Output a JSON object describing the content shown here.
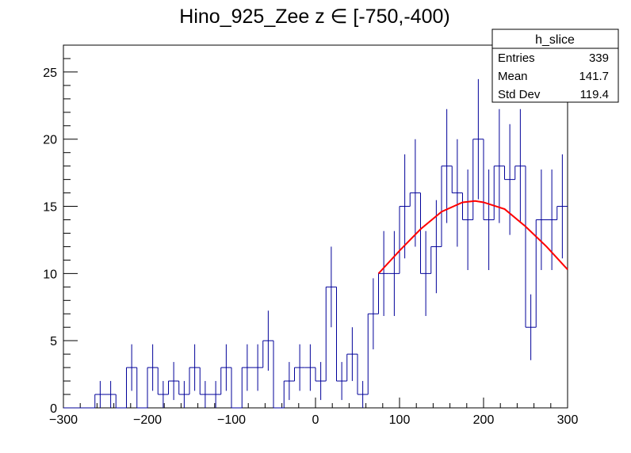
{
  "chart_data": {
    "type": "histogram",
    "title": "Hino_925_Zee z  ∈ [-750,-400)",
    "xlabel": "",
    "ylabel": "",
    "xlim": [
      -300,
      300
    ],
    "ylim": [
      0,
      27
    ],
    "x_ticks": [
      -300,
      -200,
      -100,
      0,
      100,
      200,
      300
    ],
    "y_ticks": [
      0,
      5,
      10,
      15,
      20,
      25
    ],
    "bin_width": 12.5,
    "bin_low_edges": [
      -300,
      -287.5,
      -275,
      -262.5,
      -250,
      -237.5,
      -225,
      -212.5,
      -200,
      -187.5,
      -175,
      -162.5,
      -150,
      -137.5,
      -125,
      -112.5,
      -100,
      -87.5,
      -75,
      -62.5,
      -50,
      -37.5,
      -25,
      -12.5,
      0,
      12.5,
      25,
      37.5,
      50,
      62.5,
      75,
      87.5,
      100,
      112.5,
      125,
      137.5,
      150,
      162.5,
      175,
      187.5,
      200,
      212.5,
      225,
      237.5,
      250,
      262.5,
      275,
      287.5
    ],
    "bin_values": [
      0,
      0,
      0,
      1,
      1,
      0,
      3,
      0,
      3,
      1,
      2,
      1,
      3,
      1,
      1,
      3,
      0,
      3,
      3,
      5,
      0,
      2,
      3,
      3,
      2,
      9,
      2,
      4,
      1,
      7,
      10,
      10,
      15,
      16,
      10,
      12,
      18,
      16,
      14,
      20,
      14,
      18,
      17,
      18,
      6,
      14,
      14,
      15
    ],
    "line_color": "#000099",
    "fit": {
      "color": "#ff0000",
      "x_range": [
        75,
        300
      ],
      "x": [
        75,
        100,
        125,
        150,
        175,
        190,
        200,
        225,
        250,
        275,
        300
      ],
      "y": [
        10.0,
        11.7,
        13.3,
        14.6,
        15.3,
        15.4,
        15.3,
        14.8,
        13.5,
        12.0,
        10.3
      ]
    },
    "grid": false,
    "legend": "none"
  },
  "stats_box": {
    "title": "h_slice",
    "rows": [
      {
        "label": "Entries",
        "value": "339"
      },
      {
        "label": "Mean",
        "value": "141.7"
      },
      {
        "label": "Std Dev",
        "value": "119.4"
      }
    ]
  }
}
